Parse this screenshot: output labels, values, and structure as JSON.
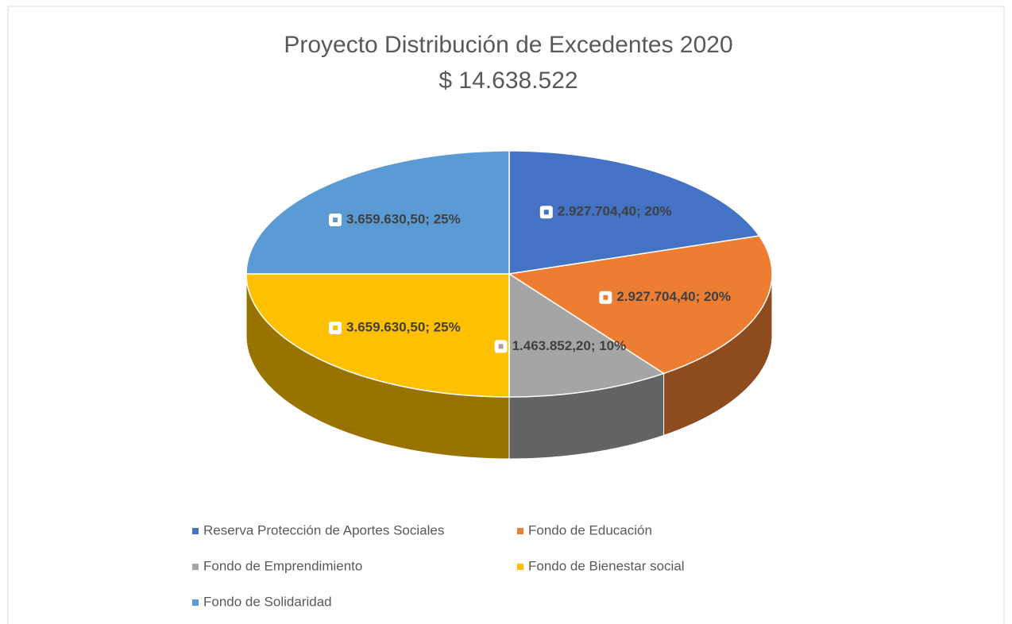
{
  "chart_data": {
    "type": "pie3d",
    "title": "Proyecto Distribución de Excedentes 2020",
    "subtitle": "$ 14.638.522",
    "categories": [
      "Reserva Protección de Aportes Sociales",
      "Fondo de Educación",
      "Fondo de Emprendimiento",
      "Fondo de Bienestar social",
      "Fondo de Solidaridad"
    ],
    "values": [
      2927704.4,
      2927704.4,
      1463852.2,
      3659630.5,
      3659630.5
    ],
    "value_labels": [
      "2.927.704,40; 20%",
      "2.927.704,40; 20%",
      "1.463.852,20; 10%",
      "3.659.630,50; 25%",
      "3.659.630,50; 25%"
    ],
    "colors": [
      "#4472c4",
      "#ed7d31",
      "#a5a5a5",
      "#ffc000",
      "#5b9bd5"
    ],
    "legend": "bottom"
  }
}
